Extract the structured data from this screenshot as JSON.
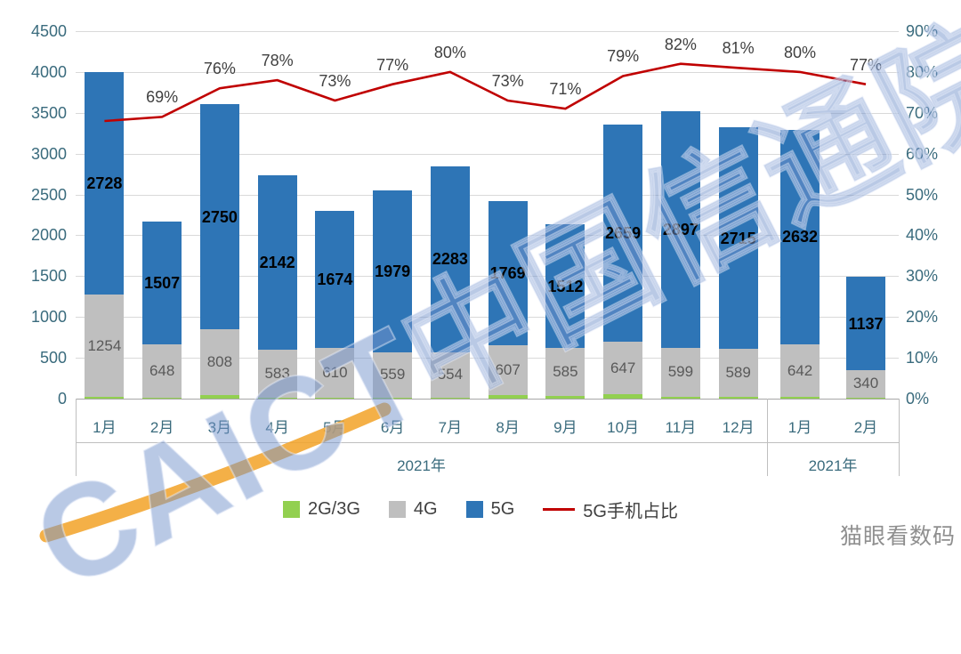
{
  "watermark": {
    "brand": "CAICT中国信通院",
    "corner": "猫眼看数码"
  },
  "chart_data": {
    "type": "bar",
    "stacked": true,
    "title": "",
    "categories": [
      "1月",
      "2月",
      "3月",
      "4月",
      "5月",
      "6月",
      "7月",
      "8月",
      "9月",
      "10月",
      "11月",
      "12月",
      "1月",
      "2月"
    ],
    "group_labels": [
      {
        "label": "2021年",
        "span": [
          0,
          11
        ]
      },
      {
        "label": "2021年",
        "span": [
          12,
          13
        ]
      }
    ],
    "series": [
      {
        "name": "2G/3G",
        "color": "#92D050",
        "labeled": false,
        "values": [
          20,
          15,
          45,
          15,
          15,
          12,
          12,
          45,
          35,
          50,
          25,
          20,
          22,
          12
        ]
      },
      {
        "name": "4G",
        "color": "#BFBFBF",
        "labeled": true,
        "values": [
          1254,
          648,
          808,
          583,
          610,
          559,
          554,
          607,
          585,
          647,
          599,
          589,
          642,
          340
        ]
      },
      {
        "name": "5G",
        "color": "#2E75B6",
        "labeled": true,
        "values": [
          2728,
          1507,
          2750,
          2142,
          1674,
          1979,
          2283,
          1769,
          1512,
          2659,
          2897,
          2715,
          2632,
          1137
        ]
      }
    ],
    "line": {
      "name": "5G手机占比",
      "color": "#C00000",
      "axis": "right",
      "label_suffix": "%",
      "values": [
        68,
        69,
        76,
        78,
        73,
        77,
        80,
        73,
        71,
        79,
        82,
        81,
        80,
        77
      ]
    },
    "left_axis": {
      "min": 0,
      "max": 4500,
      "step": 500
    },
    "right_axis": {
      "min": 0,
      "max": 90,
      "step": 10,
      "suffix": "%"
    },
    "legend": [
      "2G/3G",
      "4G",
      "5G",
      "5G手机占比"
    ],
    "grid": true,
    "legend_position": "bottom"
  }
}
